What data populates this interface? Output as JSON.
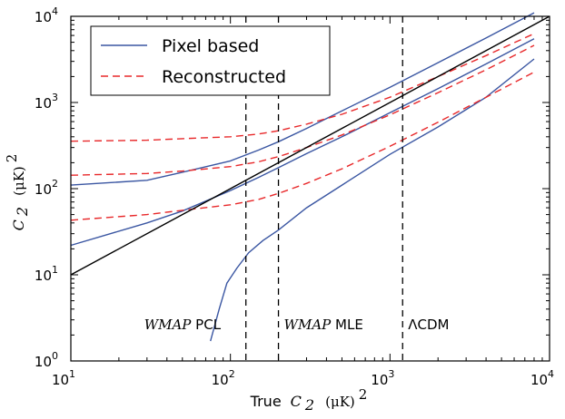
{
  "chart_data": {
    "type": "line",
    "x_scale": "log",
    "y_scale": "log",
    "xlim": [
      10,
      10000
    ],
    "ylim": [
      1,
      10000
    ],
    "x_ticks": [
      10,
      100,
      1000,
      10000
    ],
    "y_ticks": [
      1,
      10,
      100,
      1000,
      10000
    ],
    "tick_base": "10",
    "x_tick_exponents": [
      "1",
      "2",
      "3",
      "4"
    ],
    "y_tick_exponents": [
      "0",
      "1",
      "2",
      "3",
      "4"
    ],
    "xlabel_prefix": "True",
    "xlabel_symbol": "C",
    "xlabel_subscript": "2",
    "xlabel_unit": "(μK)",
    "xlabel_unit_exp": "2",
    "ylabel_symbol": "C",
    "ylabel_subscript": "2",
    "ylabel_unit": "(μK)",
    "ylabel_unit_exp": "2",
    "grid": false,
    "legend_position": "top-left",
    "legend": [
      {
        "label": "Pixel based",
        "color": "#3a56a2",
        "style": "solid"
      },
      {
        "label": "Reconstructed",
        "color": "#e8282a",
        "style": "dashed"
      }
    ],
    "series": [
      {
        "group": "Pixel based",
        "color": "#3a56a2",
        "style": "solid",
        "points": [
          [
            10,
            110
          ],
          [
            30,
            125
          ],
          [
            50,
            155
          ],
          [
            100,
            210
          ],
          [
            150,
            280
          ],
          [
            200,
            350
          ],
          [
            300,
            500
          ],
          [
            500,
            800
          ],
          [
            1000,
            1500
          ],
          [
            2000,
            2900
          ],
          [
            4000,
            5600
          ],
          [
            8000,
            11000
          ]
        ]
      },
      {
        "group": "Pixel based",
        "color": "#3a56a2",
        "style": "solid",
        "points": [
          [
            10,
            22
          ],
          [
            30,
            40
          ],
          [
            50,
            55
          ],
          [
            100,
            95
          ],
          [
            150,
            135
          ],
          [
            200,
            175
          ],
          [
            300,
            255
          ],
          [
            500,
            400
          ],
          [
            1000,
            760
          ],
          [
            2000,
            1450
          ],
          [
            4000,
            2800
          ],
          [
            8000,
            5500
          ]
        ]
      },
      {
        "group": "Pixel based",
        "color": "#3a56a2",
        "style": "solid",
        "points": [
          [
            75,
            1.7
          ],
          [
            85,
            4
          ],
          [
            95,
            8
          ],
          [
            110,
            12
          ],
          [
            130,
            18
          ],
          [
            160,
            25
          ],
          [
            200,
            33
          ],
          [
            300,
            60
          ],
          [
            500,
            110
          ],
          [
            1000,
            250
          ],
          [
            2000,
            520
          ],
          [
            4000,
            1150
          ],
          [
            8000,
            3200
          ]
        ]
      },
      {
        "group": "Reconstructed",
        "color": "#e8282a",
        "style": "dashed",
        "points": [
          [
            10,
            355
          ],
          [
            30,
            365
          ],
          [
            50,
            380
          ],
          [
            100,
            400
          ],
          [
            150,
            430
          ],
          [
            200,
            470
          ],
          [
            300,
            560
          ],
          [
            500,
            730
          ],
          [
            1000,
            1150
          ],
          [
            2000,
            2000
          ],
          [
            4000,
            3500
          ],
          [
            8000,
            6300
          ]
        ]
      },
      {
        "group": "Reconstructed",
        "color": "#e8282a",
        "style": "dashed",
        "points": [
          [
            10,
            143
          ],
          [
            30,
            150
          ],
          [
            50,
            160
          ],
          [
            100,
            180
          ],
          [
            150,
            205
          ],
          [
            200,
            235
          ],
          [
            300,
            300
          ],
          [
            500,
            420
          ],
          [
            1000,
            720
          ],
          [
            2000,
            1300
          ],
          [
            4000,
            2400
          ],
          [
            8000,
            4600
          ]
        ]
      },
      {
        "group": "Reconstructed",
        "color": "#e8282a",
        "style": "dashed",
        "points": [
          [
            10,
            43
          ],
          [
            30,
            50
          ],
          [
            50,
            56
          ],
          [
            100,
            65
          ],
          [
            150,
            75
          ],
          [
            200,
            88
          ],
          [
            300,
            115
          ],
          [
            500,
            170
          ],
          [
            1000,
            310
          ],
          [
            2000,
            590
          ],
          [
            4000,
            1150
          ],
          [
            8000,
            2250
          ]
        ]
      },
      {
        "group": "reference",
        "color": "#000000",
        "style": "solid",
        "points": [
          [
            10,
            10
          ],
          [
            10000,
            10000
          ]
        ]
      }
    ],
    "vlines": [
      {
        "x": 125,
        "label_ital": "WMAP",
        "label_rest": "PCL"
      },
      {
        "x": 200,
        "label_ital": "WMAP",
        "label_rest": "MLE"
      },
      {
        "x": 1200,
        "label_ital": "",
        "label_rest": "ΛCDM"
      }
    ]
  }
}
